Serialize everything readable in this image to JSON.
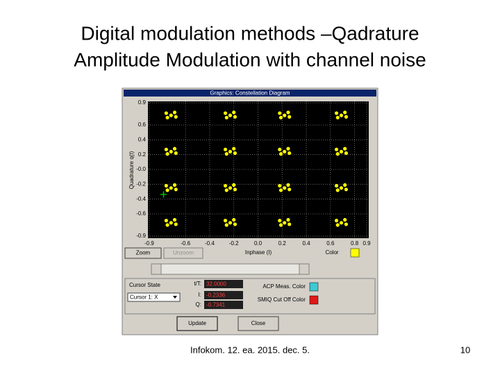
{
  "slide": {
    "title_lines": [
      "Digital modulation methods –Qadrature",
      "Amplitude Modulation with channel noise"
    ],
    "footer": "Infokom. 12. ea. 2015. dec.  5.",
    "page_number": "10"
  },
  "window": {
    "title": "Graphics: Constellation Diagram",
    "buttons": {
      "zoom": "Zoom",
      "unzoom": "Unzoom",
      "update": "Update",
      "close": "Close"
    },
    "color_label": "Color",
    "cursor_state_label": "Cursor State",
    "cursor_select": "Cursor 1: X",
    "fields": [
      {
        "label": "t/T:",
        "value": "32.0000"
      },
      {
        "label": "I:",
        "value": "-0.2336"
      },
      {
        "label": "Q:",
        "value": "-0.7341"
      }
    ],
    "acp_label": "ACP Meas. Color",
    "smiq_label": "SMIQ Cut Off Color"
  },
  "chart_data": {
    "type": "scatter",
    "x_label": "Inphase (I)",
    "y_label": "Quadrature q(t)",
    "xlim": [
      -0.9,
      0.9
    ],
    "ylim": [
      -0.9,
      0.9
    ],
    "xticks": [
      -0.9,
      -0.6,
      -0.4,
      -0.2,
      {
        "value": 0,
        "label": "0.0"
      },
      0.2,
      0.4,
      0.6,
      0.8,
      0.9
    ],
    "yticks": [
      0.9,
      0.6,
      0.4,
      0.2,
      {
        "value": 0,
        "label": "-0.0"
      },
      -0.2,
      -0.4,
      -0.6,
      -0.9
    ],
    "grid": true,
    "color": "#ffff00",
    "x": [
      -0.76,
      -0.69,
      -0.72,
      -0.75,
      -0.68,
      -0.27,
      -0.2,
      -0.23,
      -0.26,
      -0.19,
      0.18,
      0.25,
      0.22,
      0.19,
      0.26,
      0.65,
      0.72,
      0.69,
      0.66,
      0.73,
      -0.76,
      -0.69,
      -0.72,
      -0.75,
      -0.68,
      -0.27,
      -0.2,
      -0.23,
      -0.26,
      -0.19,
      0.18,
      0.25,
      0.22,
      0.19,
      0.26,
      0.65,
      0.72,
      0.69,
      0.66,
      0.73,
      -0.76,
      -0.69,
      -0.72,
      -0.75,
      -0.68,
      -0.27,
      -0.2,
      -0.23,
      -0.26,
      -0.19,
      0.18,
      0.25,
      0.22,
      0.19,
      0.26,
      0.65,
      0.72,
      0.69,
      0.66,
      0.73,
      -0.76,
      -0.69,
      -0.72,
      -0.75,
      -0.68,
      -0.27,
      -0.2,
      -0.23,
      -0.26,
      -0.19,
      0.18,
      0.25,
      0.22,
      0.19,
      0.26,
      0.65,
      0.72,
      0.69,
      0.66,
      0.73
    ],
    "y": [
      0.76,
      0.77,
      0.73,
      0.7,
      0.71,
      0.76,
      0.77,
      0.73,
      0.7,
      0.71,
      0.76,
      0.77,
      0.73,
      0.7,
      0.71,
      0.76,
      0.77,
      0.73,
      0.7,
      0.71,
      0.27,
      0.28,
      0.24,
      0.21,
      0.22,
      0.27,
      0.28,
      0.24,
      0.21,
      0.22,
      0.27,
      0.28,
      0.24,
      0.21,
      0.22,
      0.27,
      0.28,
      0.24,
      0.21,
      0.22,
      -0.22,
      -0.21,
      -0.25,
      -0.28,
      -0.27,
      -0.22,
      -0.21,
      -0.25,
      -0.28,
      -0.27,
      -0.22,
      -0.21,
      -0.25,
      -0.28,
      -0.27,
      -0.22,
      -0.21,
      -0.25,
      -0.28,
      -0.27,
      -0.69,
      -0.68,
      -0.72,
      -0.75,
      -0.74,
      -0.69,
      -0.68,
      -0.72,
      -0.75,
      -0.74,
      -0.69,
      -0.68,
      -0.72,
      -0.75,
      -0.74,
      -0.69,
      -0.68,
      -0.72,
      -0.75,
      -0.74
    ]
  }
}
